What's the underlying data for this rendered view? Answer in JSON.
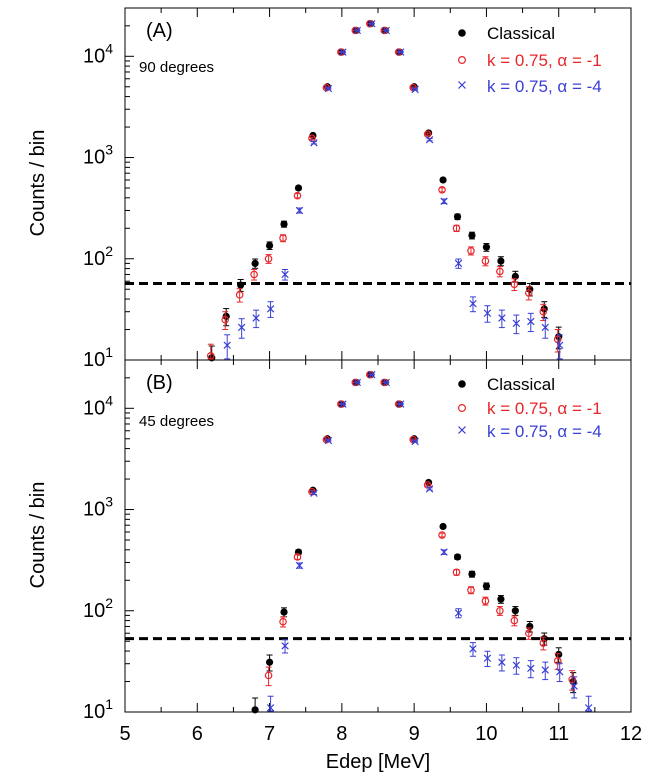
{
  "figure": {
    "ylabel": "Counts / bin",
    "xlabel": "Edep [MeV]",
    "xticks": [
      "5",
      "6",
      "7",
      "8",
      "9",
      "10",
      "11",
      "12"
    ],
    "colors": {
      "classical": "#000000",
      "alpha1": "#e8262a",
      "alpha4": "#3a3fd4",
      "threshold": "#000000"
    }
  },
  "chart_data": [
    {
      "type": "scatter",
      "panel_label": "(A)",
      "angle_label": "90 degrees",
      "xlabel": "Edep [MeV]",
      "ylabel": "Counts / bin",
      "xlim": [
        5,
        12
      ],
      "ylim": [
        10,
        30000
      ],
      "yscale": "log",
      "threshold": 57,
      "legend_position": "top-right",
      "series": [
        {
          "name": "Classical",
          "marker": "filled-circle",
          "color": "#000000",
          "x": [
            6.2,
            6.4,
            6.6,
            6.8,
            7.0,
            7.2,
            7.4,
            7.6,
            7.8,
            8.0,
            8.2,
            8.4,
            8.6,
            8.8,
            9.0,
            9.2,
            9.4,
            9.6,
            9.8,
            10.0,
            10.2,
            10.4,
            10.6,
            10.8,
            11.0
          ],
          "y": [
            10.5,
            27,
            55,
            90,
            135,
            220,
            500,
            1650,
            5000,
            11000,
            18000,
            21000,
            18000,
            11000,
            5000,
            1750,
            600,
            260,
            170,
            130,
            95,
            67,
            50,
            32,
            17
          ]
        },
        {
          "name": "k = 0.75, α = -1",
          "marker": "open-circle",
          "color": "#e8262a",
          "x": [
            6.2,
            6.4,
            6.6,
            6.8,
            7.0,
            7.2,
            7.4,
            7.6,
            7.8,
            8.0,
            8.2,
            8.4,
            8.6,
            8.8,
            9.0,
            9.2,
            9.4,
            9.6,
            9.8,
            10.0,
            10.2,
            10.4,
            10.6,
            10.8,
            11.0
          ],
          "y": [
            11,
            25,
            44,
            70,
            100,
            160,
            420,
            1550,
            4900,
            11000,
            18000,
            21000,
            18000,
            11000,
            4900,
            1700,
            480,
            200,
            120,
            95,
            75,
            56,
            46,
            30,
            16
          ]
        },
        {
          "name": "k = 0.75, α = -4",
          "marker": "x",
          "color": "#3a3fd4",
          "x": [
            6.4,
            6.6,
            6.8,
            7.0,
            7.2,
            7.4,
            7.6,
            7.8,
            8.0,
            8.2,
            8.4,
            8.6,
            8.8,
            9.0,
            9.2,
            9.4,
            9.6,
            9.8,
            10.0,
            10.2,
            10.4,
            10.6,
            10.8,
            11.0
          ],
          "y": [
            14,
            21,
            26,
            32,
            70,
            300,
            1400,
            4800,
            11000,
            18000,
            21000,
            18000,
            11000,
            4700,
            1500,
            370,
            90,
            36,
            29,
            26,
            23,
            24,
            21,
            14
          ]
        }
      ]
    },
    {
      "type": "scatter",
      "panel_label": "(B)",
      "angle_label": "45 degrees",
      "xlabel": "Edep [MeV]",
      "ylabel": "Counts / bin",
      "xlim": [
        5,
        12
      ],
      "ylim": [
        10,
        30000
      ],
      "yscale": "log",
      "threshold": 53,
      "legend_position": "top-right",
      "series": [
        {
          "name": "Classical",
          "marker": "filled-circle",
          "color": "#000000",
          "x": [
            6.8,
            7.0,
            7.2,
            7.4,
            7.6,
            7.8,
            8.0,
            8.2,
            8.4,
            8.6,
            8.8,
            9.0,
            9.2,
            9.4,
            9.6,
            9.8,
            10.0,
            10.2,
            10.4,
            10.6,
            10.8,
            11.0,
            11.2
          ],
          "y": [
            10.5,
            31,
            97,
            380,
            1550,
            5000,
            11000,
            18000,
            21500,
            18000,
            11000,
            5000,
            1850,
            680,
            340,
            230,
            175,
            130,
            100,
            70,
            53,
            37,
            20
          ]
        },
        {
          "name": "k = 0.75, α = -1",
          "marker": "open-circle",
          "color": "#e8262a",
          "x": [
            7.0,
            7.2,
            7.4,
            7.6,
            7.8,
            8.0,
            8.2,
            8.4,
            8.6,
            8.8,
            9.0,
            9.2,
            9.4,
            9.6,
            9.8,
            10.0,
            10.2,
            10.4,
            10.6,
            10.8,
            11.0,
            11.2
          ],
          "y": [
            23,
            78,
            340,
            1500,
            4900,
            11000,
            18000,
            21500,
            18000,
            11000,
            4900,
            1750,
            560,
            240,
            160,
            125,
            100,
            80,
            60,
            48,
            32,
            21
          ]
        },
        {
          "name": "k = 0.75, α = -4",
          "marker": "x",
          "color": "#3a3fd4",
          "x": [
            7.0,
            7.2,
            7.4,
            7.6,
            7.8,
            8.0,
            8.2,
            8.4,
            8.6,
            8.8,
            9.0,
            9.2,
            9.4,
            9.6,
            9.8,
            10.0,
            10.2,
            10.4,
            10.6,
            10.8,
            11.0,
            11.2,
            11.4
          ],
          "y": [
            11,
            45,
            280,
            1450,
            4800,
            11000,
            18000,
            21500,
            18000,
            11000,
            4700,
            1600,
            380,
            95,
            42,
            34,
            31,
            29,
            27,
            26,
            25,
            18,
            11
          ]
        }
      ]
    }
  ]
}
